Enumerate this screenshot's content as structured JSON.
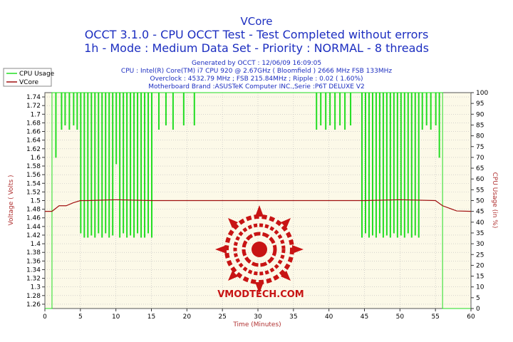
{
  "header": {
    "title": "VCore",
    "line2": "OCCT 3.1.0 - CPU OCCT Test - Test Completed without errors",
    "line3": "1h - Mode : Medium Data Set - Priority : NORMAL - 8 threads",
    "info1": "Generated by OCCT : 12/06/09 16:09:05",
    "info2": "CPU : Intel(R) Core(TM) i7 CPU 920 @ 2.67GHz ( Bloomfield ) 2666 MHz FSB 133MHz",
    "info3": "Overclock : 4532.79 MHz ; FSB 215.84MHz ; Ripple : 0.02 ( 1.60%)",
    "info4": "Motherboard Brand :ASUSTeK Computer INC.,Serie :P6T DELUXE V2"
  },
  "watermark": "VMODTECH.COM",
  "colors": {
    "cpu_usage": "#22dd22",
    "vcore": "#a01010",
    "plot_bg": "#fcf9e8",
    "grid": "#bbbbbb",
    "title": "#1c2ec0",
    "axis_label": "#b03030"
  },
  "chart_data": {
    "type": "line",
    "xlabel": "Time (Minutes)",
    "ylabel": "Voltage ( Volts )",
    "y2label": "CPU Usage (in %)",
    "xlim": [
      0,
      60
    ],
    "ylim": [
      1.25,
      1.75
    ],
    "y2lim": [
      0,
      100
    ],
    "x_ticks": [
      0,
      5,
      10,
      15,
      20,
      25,
      30,
      35,
      40,
      45,
      50,
      55,
      60
    ],
    "y_ticks": [
      1.26,
      1.28,
      1.3,
      1.32,
      1.34,
      1.36,
      1.38,
      1.4,
      1.42,
      1.44,
      1.46,
      1.48,
      1.5,
      1.52,
      1.54,
      1.56,
      1.58,
      1.6,
      1.62,
      1.64,
      1.66,
      1.68,
      1.7,
      1.72,
      1.74
    ],
    "y2_ticks": [
      0,
      5,
      10,
      15,
      20,
      25,
      30,
      35,
      40,
      45,
      50,
      55,
      60,
      65,
      70,
      75,
      80,
      85,
      90,
      95,
      100
    ],
    "legend_position": "top-left",
    "grid": true,
    "series": [
      {
        "name": "CPU Usage",
        "axis": "right",
        "baseline": 100,
        "base_before": [
          0,
          0
        ],
        "dips": [
          [
            1.0,
            0
          ],
          [
            1.5,
            70
          ],
          [
            2.3,
            83
          ],
          [
            2.8,
            85
          ],
          [
            3.4,
            83
          ],
          [
            4.0,
            85
          ],
          [
            4.5,
            83
          ],
          [
            5.0,
            35
          ],
          [
            5.5,
            33
          ],
          [
            6.0,
            33
          ],
          [
            6.5,
            34
          ],
          [
            7.0,
            33
          ],
          [
            7.5,
            35
          ],
          [
            8.0,
            33
          ],
          [
            8.5,
            35
          ],
          [
            9.0,
            33
          ],
          [
            9.5,
            34
          ],
          [
            10.0,
            67
          ],
          [
            10.5,
            33
          ],
          [
            11.0,
            35
          ],
          [
            11.5,
            33
          ],
          [
            12.0,
            34
          ],
          [
            12.5,
            33
          ],
          [
            13.0,
            35
          ],
          [
            13.5,
            33
          ],
          [
            14.0,
            33
          ],
          [
            14.5,
            35
          ],
          [
            15.0,
            33
          ],
          [
            16.0,
            83
          ],
          [
            17.0,
            85
          ],
          [
            18.0,
            83
          ],
          [
            19.5,
            85
          ],
          [
            21.0,
            85
          ],
          [
            38.2,
            83
          ],
          [
            38.8,
            85
          ],
          [
            39.5,
            83
          ],
          [
            40.1,
            85
          ],
          [
            40.8,
            83
          ],
          [
            41.5,
            85
          ],
          [
            42.2,
            83
          ],
          [
            43.0,
            85
          ],
          [
            44.6,
            33
          ],
          [
            45.1,
            35
          ],
          [
            45.6,
            33
          ],
          [
            46.1,
            34
          ],
          [
            46.6,
            33
          ],
          [
            47.1,
            35
          ],
          [
            47.6,
            33
          ],
          [
            48.1,
            34
          ],
          [
            48.6,
            33
          ],
          [
            49.1,
            35
          ],
          [
            49.6,
            33
          ],
          [
            50.1,
            34
          ],
          [
            50.6,
            33
          ],
          [
            51.1,
            35
          ],
          [
            51.6,
            33
          ],
          [
            52.1,
            34
          ],
          [
            52.6,
            33
          ],
          [
            53.1,
            83
          ],
          [
            53.7,
            85
          ],
          [
            54.3,
            83
          ],
          [
            55.0,
            85
          ],
          [
            55.5,
            70
          ],
          [
            56.0,
            0
          ]
        ],
        "base_after": [
          56.0,
          0
        ]
      },
      {
        "name": "VCore",
        "axis": "left",
        "x": [
          0,
          1,
          2,
          3,
          4,
          5,
          6,
          10,
          15,
          20,
          25,
          30,
          35,
          40,
          45,
          50,
          55,
          56,
          58,
          60
        ],
        "y": [
          1.475,
          1.475,
          1.488,
          1.488,
          1.495,
          1.5,
          1.5,
          1.502,
          1.5,
          1.5,
          1.5,
          1.5,
          1.5,
          1.5,
          1.5,
          1.502,
          1.5,
          1.488,
          1.476,
          1.475
        ]
      }
    ]
  }
}
